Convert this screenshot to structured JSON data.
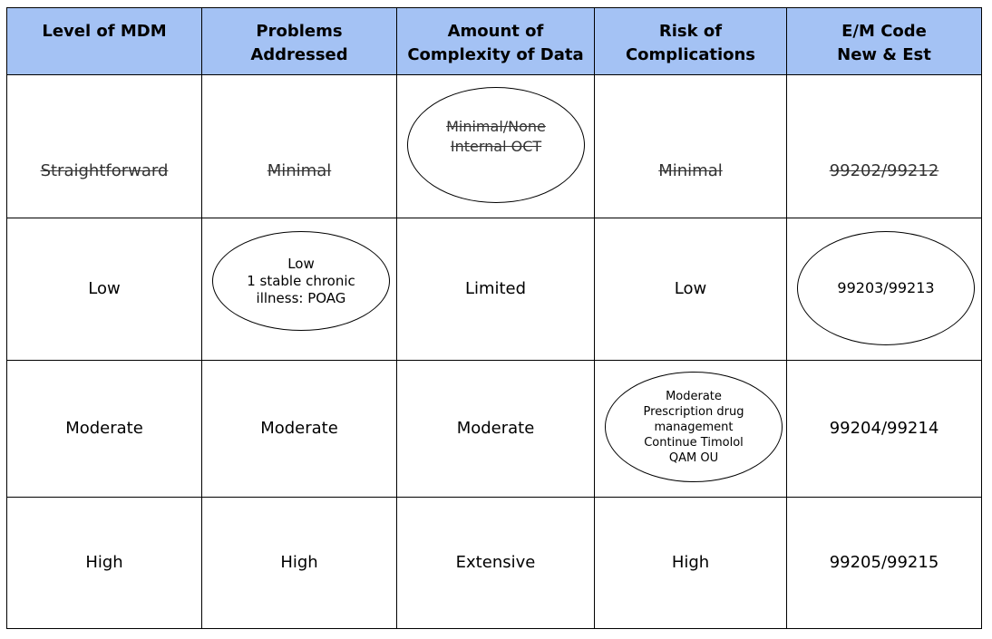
{
  "headers": [
    "Level of MDM",
    "Problems\nAddressed",
    "Amount of\nComplexity of Data",
    "Risk of\nComplications",
    "E/M Code\nNew & Est"
  ],
  "rows": [
    {
      "level": "Straightforward",
      "problems": "Minimal",
      "data": "Minimal/None\nInternal OCT",
      "risk": "Minimal",
      "code": "99202/99212"
    },
    {
      "level": "Low",
      "problems": "Low\n1 stable chronic\nillness: POAG",
      "data": "Limited",
      "risk": "Low",
      "code": "99203/99213"
    },
    {
      "level": "Moderate",
      "problems": "Moderate",
      "data": "Moderate",
      "risk": "Moderate\nPrescription drug\nmanagement\nContinue Timolol\nQAM OU",
      "code": "99204/99214"
    },
    {
      "level": "High",
      "problems": "High",
      "data": "Extensive",
      "risk": "High",
      "code": "99205/99215"
    }
  ],
  "colors": {
    "header_background": "#a4c2f4",
    "border": "#000000",
    "text": "#000000"
  }
}
